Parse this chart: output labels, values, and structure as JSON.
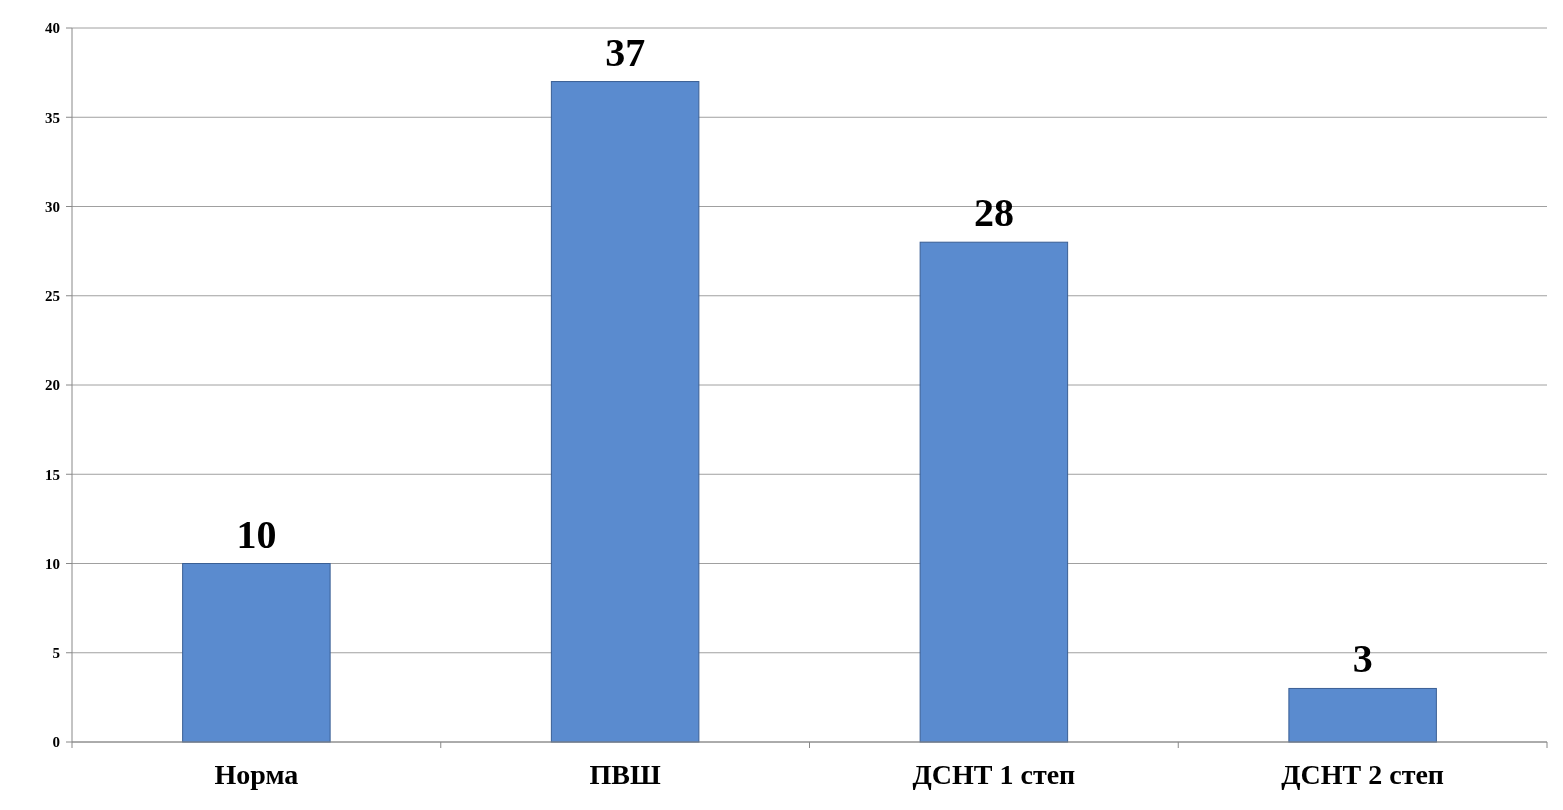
{
  "chart_data": {
    "type": "bar",
    "categories": [
      "Норма",
      "ПВШ",
      "ДСНТ 1 степ",
      "ДСНТ 2 степ"
    ],
    "values": [
      10,
      37,
      28,
      3
    ],
    "color": "#5a8bcf",
    "ylim": [
      0,
      40
    ],
    "yticks": [
      0,
      5,
      10,
      15,
      20,
      25,
      30,
      35,
      40
    ],
    "grid": "y",
    "data_labels": true
  }
}
